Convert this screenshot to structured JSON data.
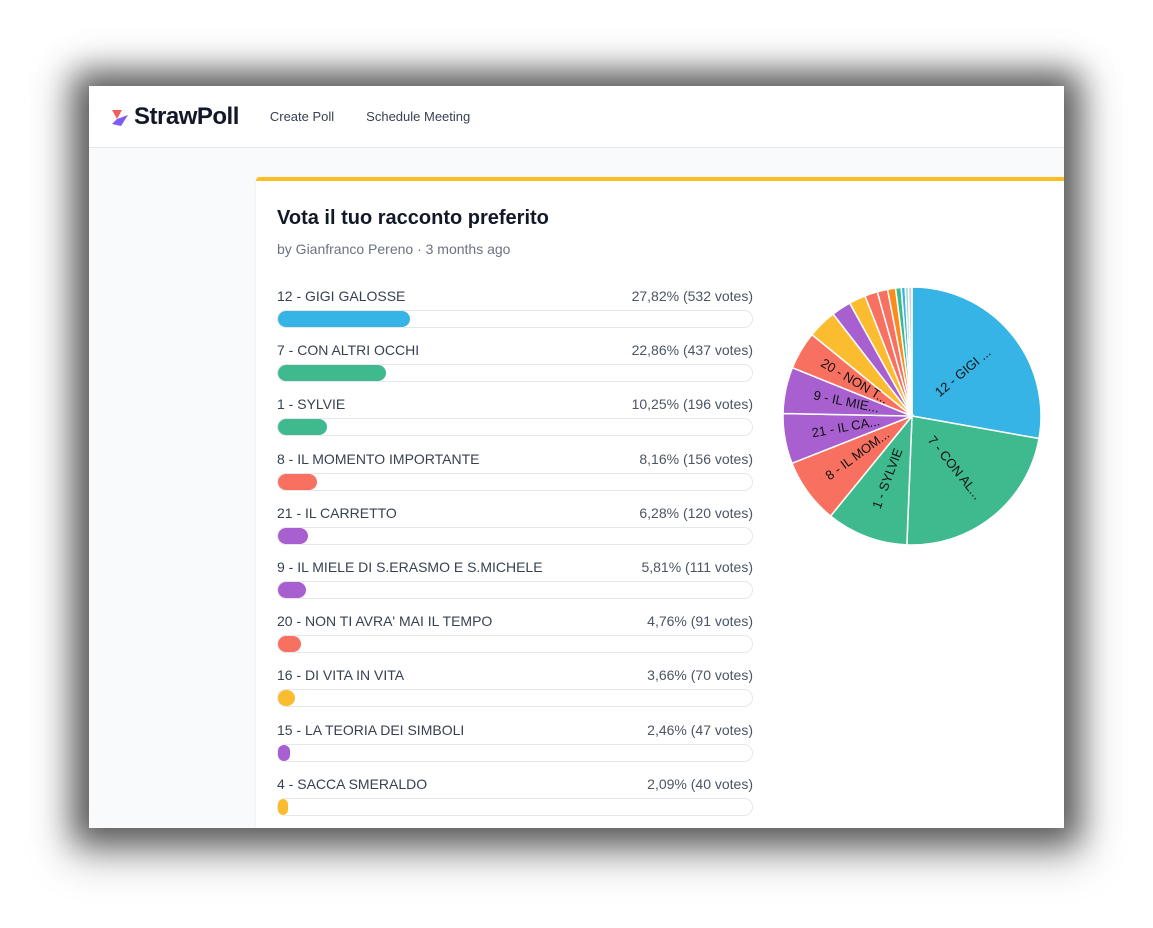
{
  "nav": {
    "brand": "StrawPoll",
    "links": [
      "Create Poll",
      "Schedule Meeting"
    ]
  },
  "poll": {
    "title": "Vota il tuo racconto preferito",
    "meta": "by Gianfranco Pereno · 3 months ago"
  },
  "colors": {
    "accent": "#fbbf24",
    "logo_red": "#f25f5c",
    "logo_purple": "#7c5cf5"
  },
  "chart_data": {
    "type": "pie",
    "slices": [
      {
        "label": "12 - GIGI GALOSSE",
        "pie_label": "12 - GIGI ...",
        "percent": 27.82,
        "value_text": "27,82% (532 votes)",
        "votes": 532,
        "color": "#36b4e5"
      },
      {
        "label": "7 - CON ALTRI OCCHI",
        "pie_label": "7 - CON AL...",
        "percent": 22.86,
        "value_text": "22,86% (437 votes)",
        "votes": 437,
        "color": "#3fba8f"
      },
      {
        "label": "1 - SYLVIE",
        "pie_label": "1 - SYLVIE",
        "percent": 10.25,
        "value_text": "10,25% (196 votes)",
        "votes": 196,
        "color": "#3fba8f"
      },
      {
        "label": "8 - IL MOMENTO IMPORTANTE",
        "pie_label": "8 - IL MOM...",
        "percent": 8.16,
        "value_text": "8,16% (156 votes)",
        "votes": 156,
        "color": "#f87060"
      },
      {
        "label": "21 - IL CARRETTO",
        "pie_label": "21 - IL CA...",
        "percent": 6.28,
        "value_text": "6,28% (120 votes)",
        "votes": 120,
        "color": "#a860d0"
      },
      {
        "label": "9 - IL MIELE DI S.ERASMO E S.MICHELE",
        "pie_label": "9 - IL MIE...",
        "percent": 5.81,
        "value_text": "5,81% (111 votes)",
        "votes": 111,
        "color": "#a860d0"
      },
      {
        "label": "20 - NON TI AVRA' MAI IL TEMPO",
        "pie_label": "20 - NON T...",
        "percent": 4.76,
        "value_text": "4,76% (91 votes)",
        "votes": 91,
        "color": "#f87060"
      },
      {
        "label": "16 - DI VITA IN VITA",
        "pie_label": "",
        "percent": 3.66,
        "value_text": "3,66% (70 votes)",
        "votes": 70,
        "color": "#fbbc30"
      },
      {
        "label": "15 - LA TEORIA DEI SIMBOLI",
        "pie_label": "",
        "percent": 2.46,
        "value_text": "2,46% (47 votes)",
        "votes": 47,
        "color": "#a860d0"
      },
      {
        "label": "4 - SACCA SMERALDO",
        "pie_label": "",
        "percent": 2.09,
        "value_text": "2,09% (40 votes)",
        "votes": 40,
        "color": "#fbbc30"
      },
      {
        "label": "",
        "pie_label": "",
        "percent": 1.6,
        "value_text": "",
        "votes": null,
        "color": "#f87060"
      },
      {
        "label": "",
        "pie_label": "",
        "percent": 1.3,
        "value_text": "",
        "votes": null,
        "color": "#f87060"
      },
      {
        "label": "",
        "pie_label": "",
        "percent": 1.0,
        "value_text": "",
        "votes": null,
        "color": "#fb8c1c"
      },
      {
        "label": "",
        "pie_label": "",
        "percent": 0.7,
        "value_text": "",
        "votes": null,
        "color": "#3fba8f"
      },
      {
        "label": "",
        "pie_label": "",
        "percent": 0.5,
        "value_text": "",
        "votes": null,
        "color": "#36b4e5"
      },
      {
        "label": "",
        "pie_label": "",
        "percent": 0.4,
        "value_text": "",
        "votes": null,
        "color": "#a0d8c8"
      },
      {
        "label": "",
        "pie_label": "",
        "percent": 0.44,
        "value_text": "",
        "votes": null,
        "color": "#d0d0d0"
      }
    ]
  }
}
